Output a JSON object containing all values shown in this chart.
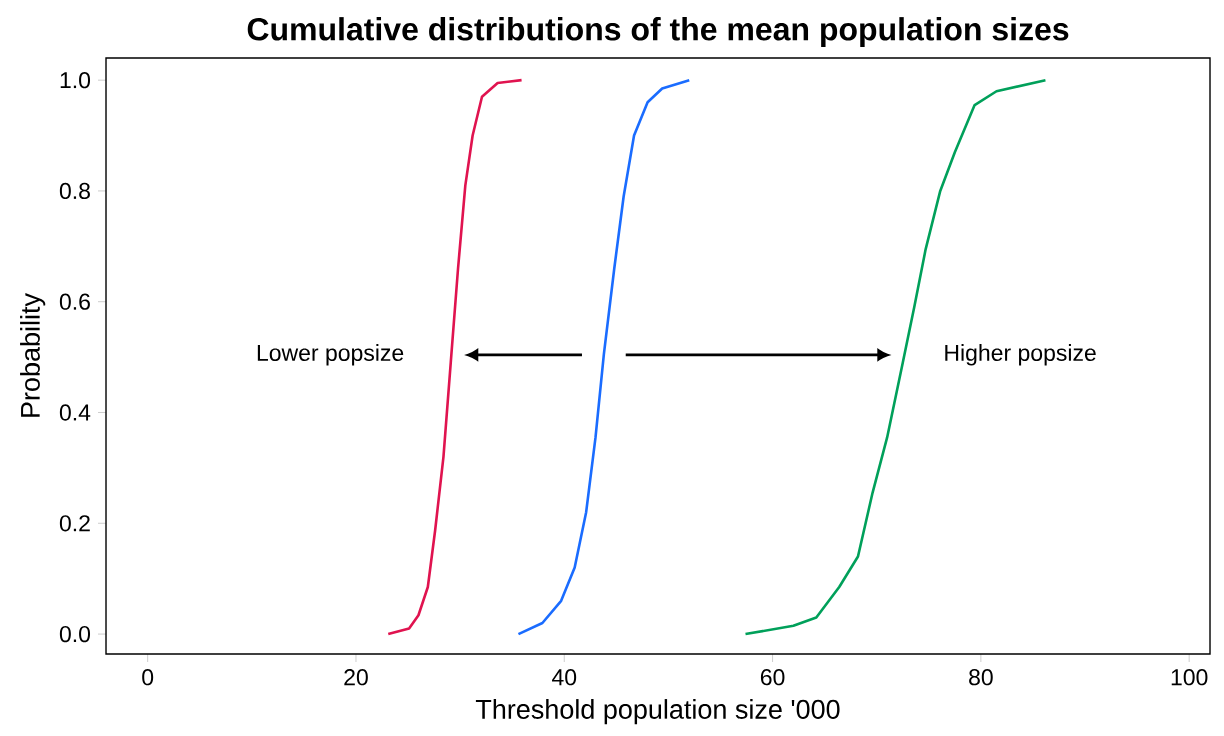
{
  "chart_data": {
    "type": "line",
    "title": "Cumulative distributions of the mean population sizes",
    "xlabel": "Threshold population size '000",
    "ylabel": "Probability",
    "xlim": [
      -4,
      102
    ],
    "ylim": [
      -0.036,
      1.04
    ],
    "xticks": [
      0,
      20,
      40,
      60,
      80,
      100
    ],
    "yticks": [
      {
        "value": 0,
        "label": "0.0"
      },
      {
        "value": 0.2,
        "label": "0.2"
      },
      {
        "value": 0.4,
        "label": "0.4"
      },
      {
        "value": 0.6,
        "label": "0.6"
      },
      {
        "value": 0.8,
        "label": "0.8"
      },
      {
        "value": 1,
        "label": "1.0"
      }
    ],
    "grid": false,
    "marker": "none",
    "line_style": "solid",
    "series": [
      {
        "color": "#e0134f",
        "x": [
          23.1,
          25.1,
          26.0,
          26.9,
          27.6,
          28.4,
          29.1,
          29.8,
          30.5,
          31.2,
          32.1,
          33.6,
          35.9
        ],
        "values": [
          0.0,
          0.01,
          0.034,
          0.085,
          0.187,
          0.32,
          0.49,
          0.66,
          0.81,
          0.9,
          0.97,
          0.995,
          1.0
        ]
      },
      {
        "color": "#1a6cff",
        "x": [
          35.6,
          37.9,
          39.7,
          41.0,
          42.1,
          43.0,
          43.8,
          44.8,
          45.7,
          46.7,
          48.0,
          49.4,
          52.0
        ],
        "values": [
          0.0,
          0.02,
          0.06,
          0.12,
          0.22,
          0.355,
          0.505,
          0.66,
          0.79,
          0.9,
          0.96,
          0.985,
          1.0
        ]
      },
      {
        "color": "#00a05a",
        "x": [
          57.4,
          62.0,
          64.2,
          66.4,
          68.2,
          69.6,
          71.0,
          72.5,
          73.6,
          74.7,
          76.1,
          77.5,
          79.4,
          81.5,
          86.2
        ],
        "values": [
          0.0,
          0.015,
          0.03,
          0.085,
          0.14,
          0.255,
          0.355,
          0.49,
          0.59,
          0.695,
          0.8,
          0.87,
          0.955,
          0.98,
          1.0
        ]
      }
    ],
    "annotations": [
      "Lower popsize",
      "Higher popsize"
    ]
  }
}
